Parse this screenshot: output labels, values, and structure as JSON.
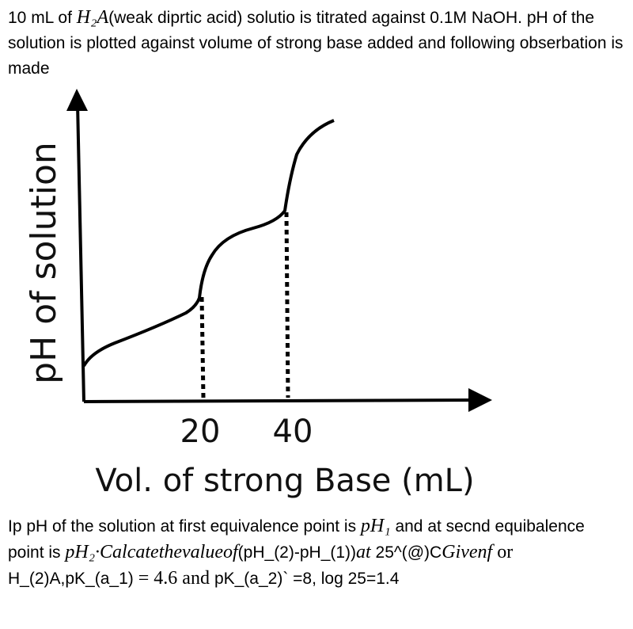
{
  "question": {
    "intro": [
      "10 mL of ",
      "H₂A",
      "(weak diprtic acid) solutio is titrated against 0.1M NaOH. pH of the solution is plotted against volume of strong base added and following obserbation is made"
    ],
    "body": [
      "Ip pH of the solution at first equivalence point is ",
      "pH₁",
      " and at secnd equibalence point is ",
      "pH₂·Calcatethevalueof",
      "(pH_(2)-pH_(1))",
      "at",
      " 25^(@)C",
      "Givenf",
      " or ",
      "H_(2)A,pK_(a_1)",
      " = 4.6 and ",
      "pK_(a_2)` =8, log 25=1.4"
    ]
  },
  "figure": {
    "y_axis_label": "pH of solution",
    "x_ticks": [
      "20",
      "40"
    ],
    "x_axis_label": "Vol. of strong Base (mL)"
  }
}
